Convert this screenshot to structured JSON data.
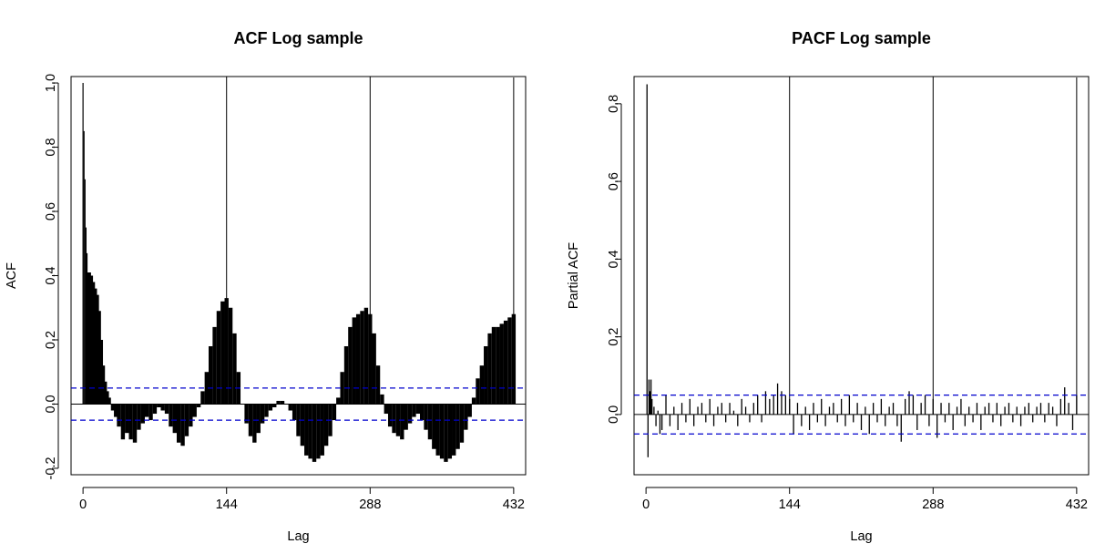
{
  "chart_data": [
    {
      "type": "bar",
      "title": "ACF Log sample",
      "xlabel": "Lag",
      "ylabel": "ACF",
      "xlim": [
        -12,
        444
      ],
      "ylim": [
        -0.22,
        1.02
      ],
      "xticks": [
        0,
        144,
        288,
        432
      ],
      "xtick_labels": [
        "0",
        "144",
        "288",
        "432"
      ],
      "yticks": [
        -0.2,
        0.0,
        0.2,
        0.4,
        0.6,
        0.8,
        1.0
      ],
      "ytick_labels": [
        "-0.2",
        "0.0",
        "0.2",
        "0.4",
        "0.6",
        "0.8",
        "1.0"
      ],
      "confidence_bounds": [
        0.05,
        -0.05
      ],
      "bound_color": "#0000cd",
      "bar_color": "#000000",
      "spike_lags": [
        144,
        288
      ],
      "max_lag": 432,
      "lags": [
        0,
        1,
        2,
        3,
        4,
        6,
        8,
        10,
        12,
        14,
        16,
        18,
        20,
        22,
        24,
        26,
        28,
        30,
        33,
        36,
        40,
        44,
        48,
        52,
        56,
        60,
        64,
        68,
        72,
        76,
        80,
        84,
        88,
        92,
        96,
        100,
        104,
        108,
        112,
        116,
        120,
        124,
        128,
        132,
        136,
        140,
        144,
        148,
        152,
        156,
        160,
        164,
        168,
        172,
        176,
        180,
        184,
        188,
        192,
        196,
        200,
        204,
        208,
        212,
        216,
        220,
        224,
        228,
        232,
        236,
        240,
        244,
        248,
        252,
        256,
        260,
        264,
        268,
        272,
        276,
        280,
        284,
        288,
        292,
        296,
        300,
        304,
        308,
        312,
        316,
        320,
        324,
        328,
        332,
        336,
        340,
        344,
        348,
        352,
        356,
        360,
        364,
        368,
        372,
        376,
        380,
        384,
        388,
        392,
        396,
        400,
        404,
        408,
        412,
        416,
        420,
        424,
        428,
        432
      ],
      "values": [
        1.0,
        0.85,
        0.7,
        0.55,
        0.47,
        0.41,
        0.4,
        0.38,
        0.36,
        0.34,
        0.29,
        0.2,
        0.12,
        0.07,
        0.04,
        0.02,
        0.0,
        -0.02,
        -0.04,
        -0.07,
        -0.11,
        -0.09,
        -0.11,
        -0.12,
        -0.08,
        -0.06,
        -0.04,
        -0.05,
        -0.03,
        -0.01,
        -0.02,
        -0.03,
        -0.07,
        -0.09,
        -0.12,
        -0.13,
        -0.1,
        -0.07,
        -0.04,
        -0.01,
        0.04,
        0.1,
        0.18,
        0.24,
        0.29,
        0.32,
        0.33,
        0.3,
        0.22,
        0.1,
        0.0,
        -0.06,
        -0.1,
        -0.12,
        -0.09,
        -0.06,
        -0.04,
        -0.02,
        -0.01,
        0.01,
        0.01,
        0.0,
        -0.02,
        -0.05,
        -0.1,
        -0.13,
        -0.16,
        -0.17,
        -0.18,
        -0.17,
        -0.16,
        -0.13,
        -0.1,
        -0.05,
        0.02,
        0.1,
        0.18,
        0.24,
        0.27,
        0.28,
        0.29,
        0.3,
        0.28,
        0.22,
        0.12,
        0.03,
        -0.03,
        -0.07,
        -0.09,
        -0.1,
        -0.11,
        -0.08,
        -0.06,
        -0.04,
        -0.03,
        -0.05,
        -0.08,
        -0.11,
        -0.14,
        -0.16,
        -0.17,
        -0.18,
        -0.17,
        -0.16,
        -0.14,
        -0.12,
        -0.08,
        -0.04,
        0.02,
        0.08,
        0.12,
        0.18,
        0.22,
        0.24,
        0.24,
        0.25,
        0.26,
        0.27,
        0.28
      ]
    },
    {
      "type": "bar",
      "title": "PACF Log sample",
      "xlabel": "Lag",
      "ylabel": "Partial ACF",
      "xlim": [
        -12,
        444
      ],
      "ylim": [
        -0.155,
        0.87
      ],
      "xticks": [
        0,
        144,
        288,
        432
      ],
      "xtick_labels": [
        "0",
        "144",
        "288",
        "432"
      ],
      "yticks": [
        0.0,
        0.2,
        0.4,
        0.6,
        0.8
      ],
      "ytick_labels": [
        "0.0",
        "0.2",
        "0.4",
        "0.6",
        "0.8"
      ],
      "confidence_bounds": [
        0.05,
        -0.05
      ],
      "bound_color": "#0000cd",
      "bar_color": "#000000",
      "spike_lags": [
        144,
        288
      ],
      "max_lag": 432,
      "lags": [
        1,
        2,
        3,
        4,
        5,
        6,
        8,
        10,
        12,
        14,
        16,
        20,
        24,
        28,
        32,
        36,
        40,
        44,
        48,
        52,
        56,
        60,
        64,
        68,
        72,
        76,
        80,
        84,
        88,
        92,
        96,
        100,
        104,
        108,
        112,
        116,
        120,
        124,
        128,
        132,
        136,
        140,
        144,
        148,
        152,
        156,
        160,
        164,
        168,
        172,
        176,
        180,
        184,
        188,
        192,
        196,
        200,
        204,
        208,
        212,
        216,
        220,
        224,
        228,
        232,
        236,
        240,
        244,
        248,
        252,
        256,
        260,
        264,
        268,
        272,
        276,
        280,
        284,
        288,
        292,
        296,
        300,
        304,
        308,
        312,
        316,
        320,
        324,
        328,
        332,
        336,
        340,
        344,
        348,
        352,
        356,
        360,
        364,
        368,
        372,
        376,
        380,
        384,
        388,
        392,
        396,
        400,
        404,
        408,
        412,
        416,
        420,
        424,
        428,
        432
      ],
      "values": [
        0.85,
        -0.11,
        0.09,
        0.06,
        0.09,
        0.04,
        0.02,
        -0.03,
        0.01,
        -0.05,
        -0.04,
        0.05,
        -0.03,
        0.02,
        -0.04,
        0.03,
        -0.02,
        0.04,
        -0.03,
        0.02,
        0.03,
        -0.02,
        0.04,
        -0.03,
        0.02,
        0.03,
        -0.02,
        0.03,
        0.01,
        -0.03,
        0.04,
        0.02,
        -0.02,
        0.03,
        0.05,
        -0.02,
        0.06,
        0.04,
        0.05,
        0.08,
        0.06,
        0.05,
        0.04,
        -0.05,
        0.03,
        -0.03,
        0.02,
        -0.04,
        0.03,
        -0.02,
        0.04,
        -0.03,
        0.02,
        0.03,
        -0.02,
        0.04,
        -0.03,
        0.05,
        -0.02,
        0.03,
        -0.04,
        0.02,
        -0.05,
        0.03,
        -0.02,
        0.04,
        -0.03,
        0.02,
        0.03,
        -0.03,
        -0.07,
        0.04,
        0.06,
        0.05,
        -0.04,
        0.03,
        0.05,
        -0.03,
        0.04,
        -0.06,
        0.03,
        -0.02,
        0.03,
        -0.04,
        0.02,
        0.04,
        -0.03,
        0.02,
        -0.02,
        0.03,
        -0.04,
        0.02,
        0.03,
        -0.02,
        0.03,
        -0.03,
        0.02,
        0.03,
        -0.02,
        0.02,
        -0.03,
        0.02,
        0.03,
        -0.02,
        0.02,
        0.03,
        -0.02,
        0.03,
        0.02,
        -0.03,
        0.04,
        0.07,
        0.03,
        -0.04,
        0.05
      ]
    }
  ]
}
